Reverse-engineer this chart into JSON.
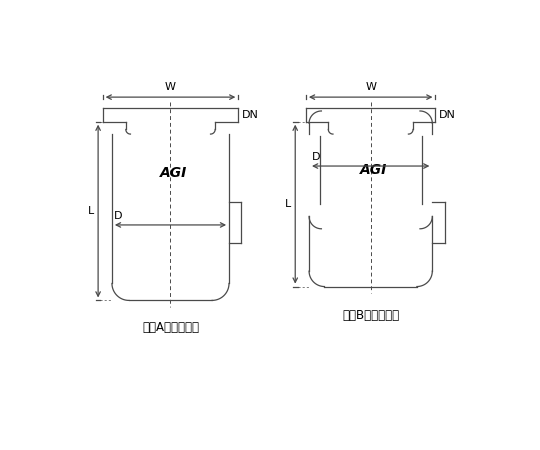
{
  "bg_color": "#ffffff",
  "line_color": "#4a4a4a",
  "text_color": "#000000",
  "title_A": "《《Aタイプ》》",
  "title_B": "《《Bタイプ》》",
  "label_W": "W",
  "label_L": "L",
  "label_D": "D",
  "label_DN": "DN",
  "label_AGI": "AGI"
}
